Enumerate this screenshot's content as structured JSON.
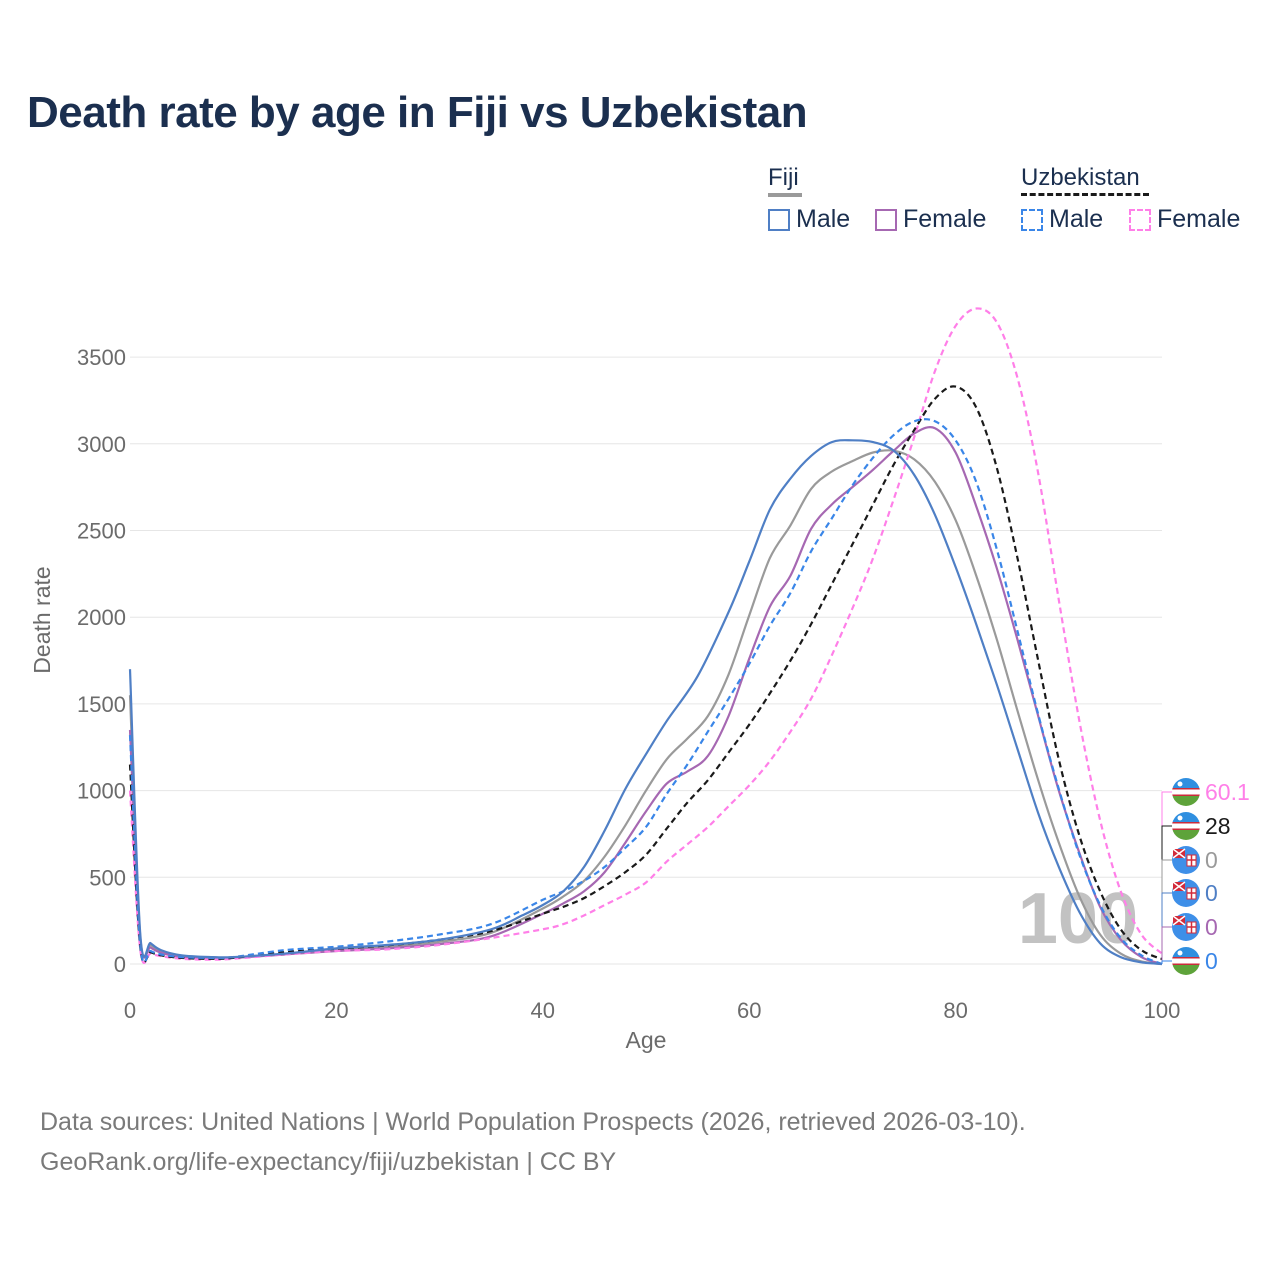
{
  "title": "Death rate by age in Fiji vs Uzbekistan",
  "legend": {
    "groups": [
      {
        "name": "Fiji",
        "items": [
          "Male",
          "Female"
        ]
      },
      {
        "name": "Uzbekistan",
        "items": [
          "Male",
          "Female"
        ]
      }
    ]
  },
  "colors": {
    "fiji_male": "#4f7fc5",
    "fiji_female": "#a668b2",
    "fiji_total": "#9a9a9a",
    "uzb_male": "#3a86e8",
    "uzb_female": "#ff7fe8",
    "uzb_total": "#1a1a1a",
    "grid": "#e6e6e6",
    "axis_text": "#6b6b6b"
  },
  "year_watermark": "100",
  "end_labels": [
    {
      "text": "60.1",
      "series": "uzb_female",
      "flag": "uzbekistan-flag-icon"
    },
    {
      "text": "28",
      "series": "uzb_total",
      "flag": "uzbekistan-flag-icon"
    },
    {
      "text": "0",
      "series": "fiji_total",
      "flag": "fiji-flag-icon"
    },
    {
      "text": "0",
      "series": "fiji_male",
      "flag": "fiji-flag-icon"
    },
    {
      "text": "0",
      "series": "fiji_female",
      "flag": "fiji-flag-icon"
    },
    {
      "text": "0",
      "series": "uzb_male",
      "flag": "uzbekistan-flag-icon"
    }
  ],
  "footer": {
    "line1": "Data sources: United Nations | World Population Prospects (2026, retrieved 2026-03-10).",
    "line2": "GeoRank.org/life-expectancy/fiji/uzbekistan | CC BY"
  },
  "chart_data": {
    "type": "line",
    "title": "Death rate by age in Fiji vs Uzbekistan",
    "xlabel": "Age",
    "ylabel": "Death rate",
    "xlim": [
      0,
      100
    ],
    "ylim": [
      0,
      3800
    ],
    "x_ticks": [
      0,
      20,
      40,
      60,
      80,
      100
    ],
    "y_ticks": [
      0,
      500,
      1000,
      1500,
      2000,
      2500,
      3000,
      3500
    ],
    "grid": true,
    "series": [
      {
        "name": "Fiji Male",
        "key": "fiji_male",
        "dashed": false,
        "x": [
          0,
          1,
          2,
          3,
          5,
          8,
          10,
          15,
          20,
          25,
          30,
          35,
          38,
          40,
          42,
          44,
          46,
          48,
          50,
          52,
          55,
          58,
          60,
          62,
          64,
          66,
          68,
          70,
          72,
          74,
          76,
          78,
          80,
          82,
          84,
          86,
          88,
          90,
          92,
          94,
          96,
          98,
          100
        ],
        "y": [
          1700,
          170,
          120,
          80,
          50,
          40,
          40,
          60,
          90,
          110,
          140,
          200,
          280,
          340,
          420,
          560,
          770,
          1010,
          1210,
          1400,
          1660,
          2030,
          2320,
          2620,
          2800,
          2930,
          3010,
          3020,
          3010,
          2960,
          2820,
          2590,
          2290,
          1960,
          1610,
          1240,
          870,
          560,
          300,
          120,
          40,
          10,
          0
        ]
      },
      {
        "name": "Fiji Female",
        "key": "fiji_female",
        "dashed": false,
        "x": [
          0,
          1,
          2,
          3,
          5,
          8,
          10,
          15,
          20,
          25,
          30,
          35,
          40,
          42,
          44,
          46,
          48,
          50,
          52,
          54,
          56,
          58,
          60,
          62,
          64,
          66,
          68,
          70,
          72,
          74,
          76,
          78,
          80,
          82,
          84,
          86,
          88,
          90,
          92,
          94,
          96,
          98,
          100
        ],
        "y": [
          1350,
          140,
          95,
          65,
          40,
          35,
          35,
          55,
          75,
          90,
          115,
          160,
          290,
          350,
          420,
          530,
          700,
          880,
          1040,
          1110,
          1200,
          1430,
          1760,
          2060,
          2240,
          2510,
          2650,
          2750,
          2850,
          2960,
          3060,
          3090,
          2950,
          2640,
          2280,
          1870,
          1430,
          1000,
          640,
          330,
          140,
          40,
          0
        ]
      },
      {
        "name": "Fiji",
        "key": "fiji_total",
        "dashed": false,
        "x": [
          0,
          1,
          2,
          3,
          5,
          8,
          10,
          15,
          20,
          25,
          30,
          35,
          40,
          42,
          44,
          46,
          48,
          50,
          52,
          54,
          56,
          58,
          60,
          62,
          64,
          66,
          68,
          70,
          72,
          74,
          76,
          78,
          80,
          82,
          84,
          86,
          88,
          90,
          92,
          94,
          96,
          98,
          100
        ],
        "y": [
          1550,
          155,
          110,
          75,
          45,
          38,
          38,
          58,
          82,
          100,
          128,
          180,
          320,
          390,
          480,
          620,
          800,
          1000,
          1180,
          1300,
          1430,
          1670,
          2010,
          2340,
          2530,
          2740,
          2840,
          2900,
          2950,
          2960,
          2910,
          2780,
          2560,
          2240,
          1870,
          1460,
          1060,
          700,
          390,
          170,
          60,
          15,
          0
        ]
      },
      {
        "name": "Uzbekistan Male",
        "key": "uzb_male",
        "dashed": true,
        "x": [
          0,
          1,
          2,
          3,
          5,
          8,
          10,
          15,
          20,
          25,
          30,
          35,
          40,
          42,
          44,
          46,
          48,
          50,
          52,
          54,
          56,
          58,
          60,
          62,
          64,
          66,
          68,
          70,
          72,
          74,
          76,
          78,
          80,
          82,
          84,
          86,
          88,
          90,
          92,
          94,
          96,
          98,
          100
        ],
        "y": [
          1320,
          110,
          75,
          55,
          40,
          35,
          40,
          80,
          100,
          130,
          170,
          230,
          370,
          420,
          480,
          560,
          670,
          790,
          980,
          1150,
          1340,
          1530,
          1730,
          1950,
          2140,
          2380,
          2570,
          2760,
          2920,
          3050,
          3130,
          3130,
          3020,
          2780,
          2390,
          1920,
          1440,
          1010,
          630,
          340,
          150,
          50,
          0
        ]
      },
      {
        "name": "Uzbekistan Female",
        "key": "uzb_female",
        "dashed": true,
        "x": [
          0,
          1,
          2,
          3,
          5,
          8,
          10,
          15,
          20,
          25,
          30,
          35,
          40,
          42,
          44,
          46,
          48,
          50,
          52,
          54,
          56,
          58,
          60,
          62,
          64,
          66,
          68,
          70,
          72,
          74,
          76,
          78,
          80,
          82,
          84,
          86,
          88,
          90,
          92,
          94,
          96,
          98,
          100
        ],
        "y": [
          1000,
          80,
          60,
          45,
          30,
          25,
          30,
          55,
          75,
          85,
          110,
          150,
          200,
          230,
          280,
          340,
          400,
          470,
          590,
          690,
          790,
          910,
          1030,
          1170,
          1340,
          1530,
          1780,
          2050,
          2340,
          2680,
          3040,
          3420,
          3680,
          3780,
          3700,
          3380,
          2830,
          2100,
          1400,
          830,
          420,
          170,
          60
        ]
      },
      {
        "name": "Uzbekistan",
        "key": "uzb_total",
        "dashed": true,
        "x": [
          0,
          1,
          2,
          3,
          5,
          8,
          10,
          15,
          20,
          25,
          30,
          35,
          40,
          42,
          44,
          46,
          48,
          50,
          52,
          54,
          56,
          58,
          60,
          62,
          64,
          66,
          68,
          70,
          72,
          74,
          76,
          78,
          80,
          82,
          84,
          86,
          88,
          90,
          92,
          94,
          96,
          98,
          100
        ],
        "y": [
          1150,
          95,
          68,
          50,
          35,
          30,
          35,
          68,
          88,
          108,
          140,
          190,
          290,
          330,
          380,
          450,
          530,
          630,
          780,
          930,
          1060,
          1220,
          1380,
          1560,
          1750,
          1960,
          2190,
          2420,
          2650,
          2880,
          3080,
          3260,
          3330,
          3210,
          2860,
          2340,
          1750,
          1180,
          740,
          420,
          200,
          80,
          28
        ]
      }
    ]
  }
}
